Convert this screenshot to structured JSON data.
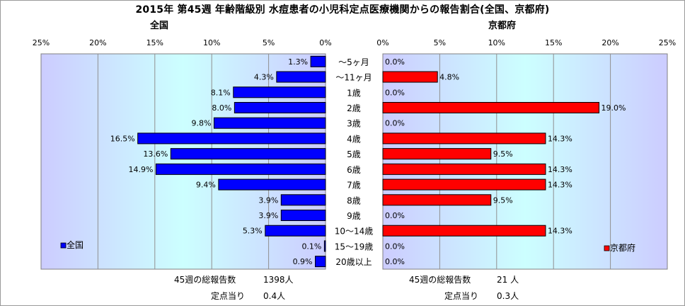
{
  "title": "2015年 第45週 年齢階級別 水痘患者の小児科定点医療機関からの報告割合(全国、京都府)",
  "colors": {
    "national": "#0000ff",
    "kyoto": "#ff0000",
    "plot_bg_edge": "#ccccff",
    "plot_bg_center": "#ccffff"
  },
  "chart_data": [
    {
      "type": "bar",
      "orientation": "horizontal",
      "title": "全国",
      "legend": "全国",
      "legend_position": "bottom-left",
      "categories": [
        "～5ヶ月",
        "～11ヶ月",
        "1歳",
        "2歳",
        "3歳",
        "4歳",
        "5歳",
        "6歳",
        "7歳",
        "8歳",
        "9歳",
        "10～14歳",
        "15～19歳",
        "20歳以上"
      ],
      "values": [
        1.3,
        4.3,
        8.1,
        8.0,
        9.8,
        16.5,
        13.6,
        14.9,
        9.4,
        3.9,
        3.9,
        5.3,
        0.1,
        0.9
      ],
      "labels": [
        "1.3%",
        "4.3%",
        "8.1%",
        "8.0%",
        "9.8%",
        "16.5%",
        "13.6%",
        "14.9%",
        "9.4%",
        "3.9%",
        "3.9%",
        "5.3%",
        "0.1%",
        "0.9%"
      ],
      "xlim": [
        0,
        25
      ],
      "ticks": [
        "0%",
        "5%",
        "10%",
        "15%",
        "20%",
        "25%"
      ],
      "grid": true
    },
    {
      "type": "bar",
      "orientation": "horizontal",
      "title": "京都府",
      "legend": "京都府",
      "legend_position": "bottom-right",
      "categories": [
        "～5ヶ月",
        "～11ヶ月",
        "1歳",
        "2歳",
        "3歳",
        "4歳",
        "5歳",
        "6歳",
        "7歳",
        "8歳",
        "9歳",
        "10～14歳",
        "15～19歳",
        "20歳以上"
      ],
      "values": [
        0.0,
        4.8,
        0.0,
        19.0,
        0.0,
        14.3,
        9.5,
        14.3,
        14.3,
        9.5,
        0.0,
        14.3,
        0.0,
        0.0
      ],
      "labels": [
        "0.0%",
        "4.8%",
        "0.0%",
        "19.0%",
        "0.0%",
        "14.3%",
        "9.5%",
        "14.3%",
        "14.3%",
        "9.5%",
        "0.0%",
        "14.3%",
        "0.0%",
        "0.0%"
      ],
      "xlim": [
        0,
        25
      ],
      "ticks": [
        "0%",
        "5%",
        "10%",
        "15%",
        "20%",
        "25%"
      ],
      "grid": true
    }
  ],
  "footer": {
    "national_total_label": "45週の総報告数",
    "national_total_value": "1398人",
    "national_per_label": "定点当り",
    "national_per_value": "0.4人",
    "kyoto_total_label": "45週の総報告数",
    "kyoto_total_value": "21 人",
    "kyoto_per_label": "定点当り",
    "kyoto_per_value": "0.3人"
  }
}
